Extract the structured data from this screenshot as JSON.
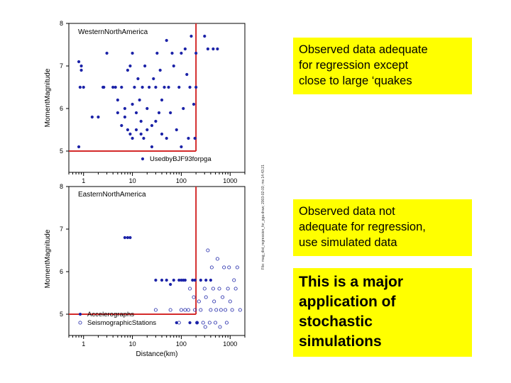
{
  "callouts": {
    "top": [
      "Observed data adequate",
      "for regression except",
      "close to large ‘quakes"
    ],
    "middle": [
      "Observed data not",
      "adequate for regression,",
      "use simulated data"
    ],
    "bottom": [
      "This is a major",
      "application of",
      "stochastic",
      "simulations"
    ]
  },
  "side_text": "File: mag_dist_regression_for_pga.draw; 2003-02-03; ms 14:43:21",
  "colors": {
    "points": "#1c23a8",
    "threshold": "#d42a2a",
    "callout": "#ffff00"
  },
  "chart_data": [
    {
      "type": "scatter",
      "title": "WesternNorthAmerica",
      "ylabel": "MomentMagnitude",
      "xlabel": "",
      "xscale": "log",
      "xlim": [
        0.5,
        2000
      ],
      "ylim": [
        4.5,
        8
      ],
      "yticks": [
        "5",
        "6",
        "7",
        "8"
      ],
      "xticks": [
        "1",
        "10",
        "100",
        "1000"
      ],
      "thresholds": {
        "magnitude": 5.0,
        "distance_km": 200
      },
      "legend": [
        {
          "label": "UsedbyBJF93forpga",
          "marker": "filled"
        }
      ],
      "series": [
        {
          "name": "UsedbyBJF93forpga",
          "marker": "filled",
          "points": [
            [
              0.8,
              5.1
            ],
            [
              0.8,
              7.1
            ],
            [
              0.9,
              7.0
            ],
            [
              0.9,
              6.9
            ],
            [
              0.85,
              6.5
            ],
            [
              1.0,
              6.5
            ],
            [
              1.5,
              5.8
            ],
            [
              2.0,
              5.8
            ],
            [
              2.5,
              6.5
            ],
            [
              2.6,
              6.5
            ],
            [
              3.0,
              7.3
            ],
            [
              4.0,
              6.5
            ],
            [
              4.5,
              6.5
            ],
            [
              5.0,
              6.2
            ],
            [
              5.0,
              5.9
            ],
            [
              6.0,
              5.6
            ],
            [
              6.0,
              6.5
            ],
            [
              7.0,
              6.0
            ],
            [
              7.0,
              5.8
            ],
            [
              8.0,
              6.9
            ],
            [
              8.0,
              5.5
            ],
            [
              9.0,
              5.4
            ],
            [
              9.0,
              7.0
            ],
            [
              10.0,
              5.3
            ],
            [
              10.0,
              6.1
            ],
            [
              10.0,
              7.3
            ],
            [
              11.0,
              6.5
            ],
            [
              12.0,
              5.9
            ],
            [
              12.0,
              5.5
            ],
            [
              13.0,
              6.7
            ],
            [
              14.0,
              6.2
            ],
            [
              15.0,
              5.4
            ],
            [
              15.0,
              5.7
            ],
            [
              16.0,
              6.5
            ],
            [
              17.0,
              5.3
            ],
            [
              18.0,
              7.0
            ],
            [
              20.0,
              5.5
            ],
            [
              20.0,
              6.0
            ],
            [
              22.0,
              6.5
            ],
            [
              25.0,
              5.1
            ],
            [
              25.0,
              5.6
            ],
            [
              27.0,
              6.7
            ],
            [
              30.0,
              5.7
            ],
            [
              30.0,
              6.5
            ],
            [
              32.0,
              7.3
            ],
            [
              35.0,
              5.9
            ],
            [
              37.0,
              6.9
            ],
            [
              40.0,
              6.2
            ],
            [
              40.0,
              5.4
            ],
            [
              45.0,
              6.5
            ],
            [
              50.0,
              5.3
            ],
            [
              50.0,
              7.6
            ],
            [
              55.0,
              6.5
            ],
            [
              60.0,
              5.9
            ],
            [
              65.0,
              7.3
            ],
            [
              70.0,
              7.0
            ],
            [
              80.0,
              5.5
            ],
            [
              90.0,
              6.5
            ],
            [
              100.0,
              7.3
            ],
            [
              100.0,
              5.1
            ],
            [
              110.0,
              6.0
            ],
            [
              120.0,
              7.4
            ],
            [
              130.0,
              6.8
            ],
            [
              140.0,
              5.3
            ],
            [
              150.0,
              6.5
            ],
            [
              160.0,
              7.7
            ],
            [
              180.0,
              6.1
            ],
            [
              190.0,
              5.3
            ],
            [
              200.0,
              6.5
            ],
            [
              200.0,
              7.3
            ],
            [
              300.0,
              7.7
            ],
            [
              350.0,
              7.4
            ],
            [
              450.0,
              7.4
            ],
            [
              550.0,
              7.4
            ]
          ]
        }
      ]
    },
    {
      "type": "scatter",
      "title": "EasternNorthAmerica",
      "ylabel": "MomentMagnitude",
      "xlabel": "Distance(km)",
      "xscale": "log",
      "xlim": [
        0.5,
        2000
      ],
      "ylim": [
        4.5,
        8
      ],
      "yticks": [
        "5",
        "6",
        "7",
        "8"
      ],
      "xticks": [
        "1",
        "10",
        "100",
        "1000"
      ],
      "thresholds": {
        "magnitude": 5.0,
        "distance_km": 200
      },
      "legend": [
        {
          "label": "Accelerographs",
          "marker": "filled"
        },
        {
          "label": "SeismographicStations",
          "marker": "open"
        }
      ],
      "series": [
        {
          "name": "Accelerographs",
          "marker": "filled",
          "points": [
            [
              7.0,
              6.8
            ],
            [
              8.0,
              6.8
            ],
            [
              9.0,
              6.8
            ],
            [
              30.0,
              5.8
            ],
            [
              40.0,
              5.8
            ],
            [
              50.0,
              5.8
            ],
            [
              60.0,
              5.7
            ],
            [
              70.0,
              5.8
            ],
            [
              80.0,
              4.8
            ],
            [
              90.0,
              5.8
            ],
            [
              100.0,
              5.8
            ],
            [
              110.0,
              5.8
            ],
            [
              120.0,
              5.8
            ],
            [
              150.0,
              4.8
            ],
            [
              170.0,
              5.8
            ],
            [
              190.0,
              5.8
            ],
            [
              210.0,
              4.8
            ],
            [
              250.0,
              5.8
            ],
            [
              320.0,
              5.8
            ],
            [
              400.0,
              5.8
            ]
          ]
        },
        {
          "name": "SeismographicStations",
          "marker": "open",
          "points": [
            [
              30.0,
              5.1
            ],
            [
              60.0,
              5.1
            ],
            [
              90.0,
              4.8
            ],
            [
              100.0,
              5.1
            ],
            [
              120.0,
              5.1
            ],
            [
              140.0,
              5.1
            ],
            [
              150.0,
              5.6
            ],
            [
              180.0,
              5.4
            ],
            [
              190.0,
              5.1
            ],
            [
              210.0,
              4.8
            ],
            [
              230.0,
              5.3
            ],
            [
              250.0,
              5.1
            ],
            [
              280.0,
              4.8
            ],
            [
              300.0,
              5.6
            ],
            [
              310.0,
              4.7
            ],
            [
              320.0,
              5.4
            ],
            [
              350.0,
              6.5
            ],
            [
              380.0,
              4.8
            ],
            [
              400.0,
              5.1
            ],
            [
              420.0,
              6.1
            ],
            [
              450.0,
              5.6
            ],
            [
              470.0,
              5.3
            ],
            [
              500.0,
              4.8
            ],
            [
              520.0,
              5.1
            ],
            [
              550.0,
              6.3
            ],
            [
              600.0,
              5.6
            ],
            [
              620.0,
              4.7
            ],
            [
              650.0,
              5.1
            ],
            [
              700.0,
              5.4
            ],
            [
              750.0,
              6.1
            ],
            [
              800.0,
              5.1
            ],
            [
              850.0,
              4.8
            ],
            [
              900.0,
              5.6
            ],
            [
              950.0,
              6.1
            ],
            [
              1000.0,
              5.3
            ],
            [
              1100.0,
              5.1
            ],
            [
              1200.0,
              5.8
            ],
            [
              1300.0,
              5.6
            ],
            [
              1400.0,
              6.1
            ],
            [
              1600.0,
              5.1
            ]
          ]
        }
      ]
    }
  ]
}
